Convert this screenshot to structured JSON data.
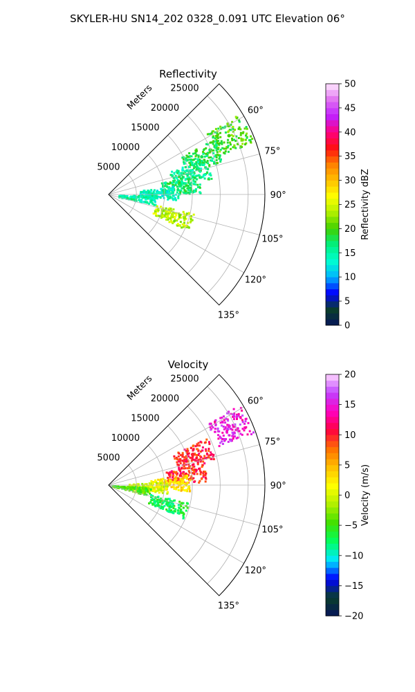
{
  "figure": {
    "title": "SKYLER-HU  SN14_202  0328_0.091 UTC Elevation 06°"
  },
  "chart_data": [
    {
      "type": "heatmap",
      "subtype": "polar-sector",
      "title": "Reflectivity",
      "radial_label": "Meters",
      "radial_ticks": [
        "5000",
        "10000",
        "15000",
        "20000",
        "25000"
      ],
      "radial_range": [
        0,
        28000
      ],
      "angle_ticks": [
        "60°",
        "75°",
        "90°",
        "105°",
        "120°",
        "135°"
      ],
      "angle_range": [
        45,
        135
      ],
      "grid": true,
      "colorbar": {
        "label": "Reflectivity dBZ",
        "range": [
          0,
          50
        ],
        "ticks": [
          "0",
          "5",
          "10",
          "15",
          "20",
          "25",
          "30",
          "35",
          "40",
          "45",
          "50"
        ]
      },
      "echoes": [
        {
          "azimuth": 64,
          "range": 24000,
          "value": 20
        },
        {
          "azimuth": 68,
          "range": 18000,
          "value": 18
        },
        {
          "azimuth": 75,
          "range": 15000,
          "value": 16
        },
        {
          "azimuth": 83,
          "range": 13000,
          "value": 17
        },
        {
          "azimuth": 88,
          "range": 9000,
          "value": 14
        },
        {
          "azimuth": 96,
          "range": 5000,
          "value": 15
        },
        {
          "azimuth": 108,
          "range": 12000,
          "value": 24
        }
      ]
    },
    {
      "type": "heatmap",
      "subtype": "polar-sector",
      "title": "Velocity",
      "radial_label": "Meters",
      "radial_ticks": [
        "5000",
        "10000",
        "15000",
        "20000",
        "25000"
      ],
      "radial_range": [
        0,
        28000
      ],
      "angle_ticks": [
        "60°",
        "75°",
        "90°",
        "105°",
        "120°",
        "135°"
      ],
      "angle_range": [
        45,
        135
      ],
      "grid": true,
      "colorbar": {
        "label": "Velocity (m/s)",
        "range": [
          -20,
          20
        ],
        "ticks": [
          "−20",
          "−15",
          "−10",
          "−5",
          "0",
          "5",
          "10",
          "15",
          "20"
        ]
      },
      "echoes": [
        {
          "azimuth": 64,
          "range": 24000,
          "value": 15
        },
        {
          "azimuth": 70,
          "range": 16000,
          "value": 10
        },
        {
          "azimuth": 82,
          "range": 14000,
          "value": 10
        },
        {
          "azimuth": 88,
          "range": 11000,
          "value": 3
        },
        {
          "azimuth": 92,
          "range": 7000,
          "value": 0
        },
        {
          "azimuth": 98,
          "range": 4000,
          "value": -4
        },
        {
          "azimuth": 108,
          "range": 11000,
          "value": -7
        }
      ]
    }
  ],
  "colors": {
    "reflectivity_stops": [
      "#06155a",
      "#0a3f2a",
      "#0000ff",
      "#00b4ff",
      "#00ffd0",
      "#00f080",
      "#40d000",
      "#b0f000",
      "#ffff00",
      "#ffc000",
      "#ff8000",
      "#ff1010",
      "#ff0080",
      "#c020ff",
      "#e070f0",
      "#ffe8ff"
    ],
    "velocity_stops": [
      "#06155a",
      "#0a3f2a",
      "#0000ff",
      "#00e8ff",
      "#00ff60",
      "#40e000",
      "#b0f000",
      "#ffff00",
      "#ffc000",
      "#ff7000",
      "#ff0040",
      "#ff00c0",
      "#c040ff",
      "#ffd8ff"
    ]
  }
}
